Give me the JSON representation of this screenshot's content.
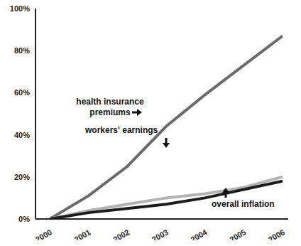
{
  "chart_data": {
    "type": "line",
    "x": [
      2000,
      2001,
      2002,
      2003,
      2004,
      2005,
      2006
    ],
    "xlim": [
      2000,
      2006
    ],
    "xticks": [
      2000,
      2001,
      2002,
      2003,
      2004,
      2005,
      2006
    ],
    "ylim": [
      0,
      100
    ],
    "yticks": [
      {
        "value": 0,
        "label": "0%"
      },
      {
        "value": 20,
        "label": "20%"
      },
      {
        "value": 40,
        "label": "40%"
      },
      {
        "value": 60,
        "label": "60%"
      },
      {
        "value": 80,
        "label": "80%"
      },
      {
        "value": 100,
        "label": "100%"
      }
    ],
    "grid": false,
    "series": [
      {
        "name": "health insurance premiums",
        "color": "#6b6b6b",
        "values": [
          0,
          11,
          25,
          44,
          59,
          73,
          87
        ]
      },
      {
        "name": "workers' earnings",
        "color": "#b3b3b3",
        "values": [
          0,
          4,
          7,
          10,
          12,
          15,
          20
        ]
      },
      {
        "name": "overall inflation",
        "color": "#1c1c1c",
        "values": [
          0,
          3,
          5,
          7,
          10,
          14,
          18
        ]
      }
    ],
    "annotations": [
      "health insurance premiums",
      "workers' earnings",
      "overall inflation"
    ]
  }
}
